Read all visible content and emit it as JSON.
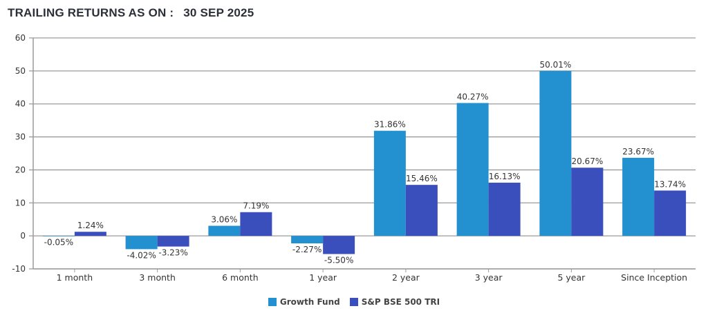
{
  "header": {
    "title": "TRAILING RETURNS AS ON :",
    "date": "30 SEP 2025"
  },
  "chart_data": {
    "type": "bar",
    "title": "TRAILING RETURNS AS ON : 30 SEP 2025",
    "xlabel": "",
    "ylabel": "",
    "ylim": [
      -10,
      60
    ],
    "yticks": [
      60,
      50,
      40,
      30,
      20,
      10,
      0,
      -10
    ],
    "grid": true,
    "legend_position": "bottom-center",
    "categories": [
      "1 month",
      "3 month",
      "6 month",
      "1 year",
      "2 year",
      "3 year",
      "5 year",
      "Since Inception"
    ],
    "series": [
      {
        "name": "Growth Fund",
        "color": "#2390D0",
        "values": [
          -0.05,
          -4.02,
          3.06,
          -2.27,
          31.86,
          40.27,
          50.01,
          23.67
        ],
        "labels": [
          "-0.05%",
          "-4.02%",
          "3.06%",
          "-2.27%",
          "31.86%",
          "40.27%",
          "50.01%",
          "23.67%"
        ]
      },
      {
        "name": "S&P BSE 500 TRI",
        "color": "#3A4FBC",
        "values": [
          1.24,
          -3.23,
          7.19,
          -5.5,
          15.46,
          16.13,
          20.67,
          13.74
        ],
        "labels": [
          "1.24%",
          "-3.23%",
          "7.19%",
          "-5.50%",
          "15.46%",
          "16.13%",
          "20.67%",
          "13.74%"
        ]
      }
    ]
  }
}
